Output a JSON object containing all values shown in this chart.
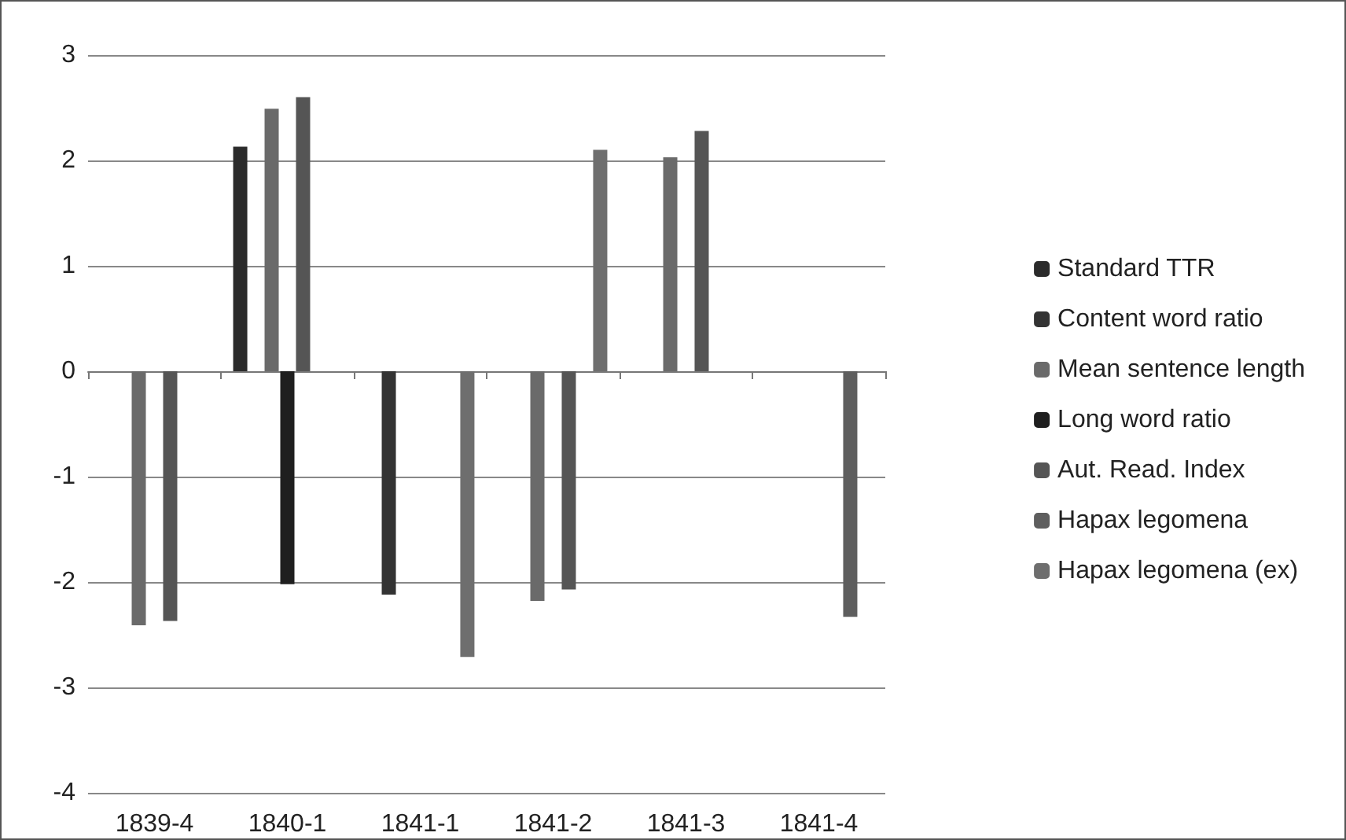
{
  "chart_data": {
    "type": "bar",
    "categories": [
      "1839-4",
      "1840-1",
      "1841-1",
      "1841-2",
      "1841-3",
      "1841-4"
    ],
    "series": [
      {
        "name": "Standard TTR",
        "color": "#2b2b2b",
        "values": [
          null,
          2.13,
          null,
          null,
          null,
          null
        ]
      },
      {
        "name": "Content word ratio",
        "color": "#333333",
        "values": [
          null,
          null,
          -2.12,
          null,
          null,
          null
        ]
      },
      {
        "name": "Mean sentence length",
        "color": "#6a6a6a",
        "values": [
          -2.41,
          2.49,
          null,
          -2.18,
          2.03,
          null
        ]
      },
      {
        "name": "Long word ratio",
        "color": "#1f1f1f",
        "values": [
          null,
          -2.02,
          null,
          null,
          null,
          null
        ]
      },
      {
        "name": "Aut. Read. Index",
        "color": "#555555",
        "values": [
          -2.37,
          2.6,
          null,
          -2.07,
          2.28,
          null
        ]
      },
      {
        "name": "Hapax legomena",
        "color": "#5e5e5e",
        "values": [
          null,
          null,
          null,
          null,
          null,
          -2.33
        ]
      },
      {
        "name": "Hapax legomena (ex)",
        "color": "#6e6e6e",
        "values": [
          null,
          null,
          -2.71,
          2.1,
          null,
          null
        ]
      }
    ],
    "ylim": [
      -4,
      3
    ],
    "yticks": [
      -4,
      -3,
      -2,
      -1,
      0,
      1,
      2,
      3
    ],
    "grid": "y",
    "legend": "right"
  }
}
